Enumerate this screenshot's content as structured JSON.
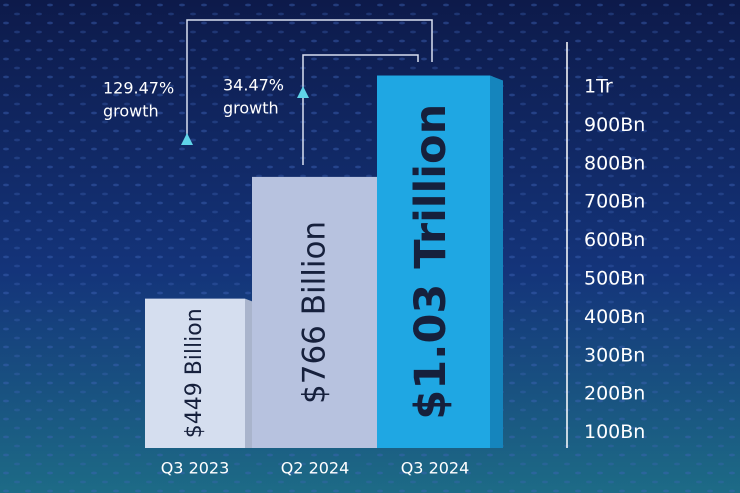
{
  "chart_data": {
    "type": "bar",
    "categories": [
      "Q3 2023",
      "Q2 2024",
      "Q3 2024"
    ],
    "values": [
      449,
      766,
      1030
    ],
    "value_labels": [
      "$449 Billion",
      "$766 Billion",
      "$1.03 Trillion"
    ],
    "colors": [
      "#d5deef",
      "#b7c2df",
      "#1fa7e3"
    ],
    "ylim": [
      60,
      1060
    ],
    "yticks": [
      {
        "value": 100,
        "label": "100Bn"
      },
      {
        "value": 200,
        "label": "200Bn"
      },
      {
        "value": 300,
        "label": "300Bn"
      },
      {
        "value": 400,
        "label": "400Bn"
      },
      {
        "value": 500,
        "label": "500Bn"
      },
      {
        "value": 600,
        "label": "600Bn"
      },
      {
        "value": 700,
        "label": "700Bn"
      },
      {
        "value": 800,
        "label": "800Bn"
      },
      {
        "value": 900,
        "label": "900Bn"
      },
      {
        "value": 1000,
        "label": "1Tr"
      }
    ],
    "annotations": [
      [
        "129.47%",
        "growth"
      ],
      [
        "34.47%",
        "growth"
      ]
    ]
  }
}
